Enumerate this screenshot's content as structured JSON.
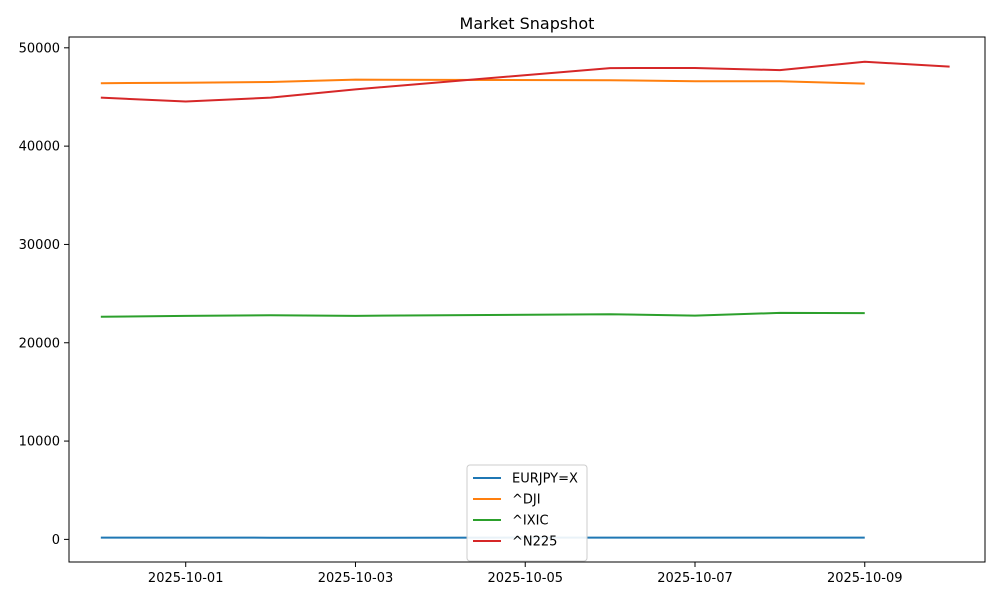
{
  "chart_data": {
    "type": "line",
    "title": "Market Snapshot",
    "xlabel": "",
    "ylabel": "",
    "x": [
      "2025-09-30",
      "2025-10-01",
      "2025-10-02",
      "2025-10-03",
      "2025-10-04",
      "2025-10-05",
      "2025-10-06",
      "2025-10-07",
      "2025-10-08",
      "2025-10-09",
      "2025-10-10"
    ],
    "x_ticks": [
      "2025-10-01",
      "2025-10-03",
      "2025-10-05",
      "2025-10-07",
      "2025-10-09"
    ],
    "xlim": [
      "2025-09-29T15:00",
      "2025-10-10T10:00"
    ],
    "y_ticks": [
      0,
      10000,
      20000,
      30000,
      40000,
      50000
    ],
    "ylim": [
      -2300,
      51100
    ],
    "grid": false,
    "legend_position": "lower center",
    "series": [
      {
        "name": "EURJPY=X",
        "color": "#1f77b4",
        "points": [
          [
            "2025-09-30",
            173.9
          ],
          [
            "2025-10-01",
            174.2
          ],
          [
            "2025-10-02",
            172.5
          ],
          [
            "2025-10-03",
            172.9
          ],
          [
            "2025-10-06",
            174.8
          ],
          [
            "2025-10-07",
            176.5
          ],
          [
            "2025-10-08",
            176.9
          ],
          [
            "2025-10-09",
            177.2
          ]
        ]
      },
      {
        "name": "^DJI",
        "color": "#ff7f0e",
        "points": [
          [
            "2025-09-30",
            46400
          ],
          [
            "2025-10-01",
            46450
          ],
          [
            "2025-10-02",
            46520
          ],
          [
            "2025-10-03",
            46760
          ],
          [
            "2025-10-06",
            46700
          ],
          [
            "2025-10-07",
            46600
          ],
          [
            "2025-10-08",
            46600
          ],
          [
            "2025-10-09",
            46360
          ]
        ]
      },
      {
        "name": "^IXIC",
        "color": "#2ca02c",
        "points": [
          [
            "2025-09-30",
            22650
          ],
          [
            "2025-10-01",
            22730
          ],
          [
            "2025-10-02",
            22800
          ],
          [
            "2025-10-03",
            22740
          ],
          [
            "2025-10-06",
            22900
          ],
          [
            "2025-10-07",
            22760
          ],
          [
            "2025-10-08",
            23040
          ],
          [
            "2025-10-09",
            23020
          ]
        ]
      },
      {
        "name": "^N225",
        "color": "#d62728",
        "points": [
          [
            "2025-09-30",
            44930
          ],
          [
            "2025-10-01",
            44540
          ],
          [
            "2025-10-02",
            44930
          ],
          [
            "2025-10-03",
            45770
          ],
          [
            "2025-10-06",
            47940
          ],
          [
            "2025-10-07",
            47950
          ],
          [
            "2025-10-08",
            47730
          ],
          [
            "2025-10-09",
            48580
          ],
          [
            "2025-10-10",
            48090
          ]
        ]
      }
    ]
  }
}
